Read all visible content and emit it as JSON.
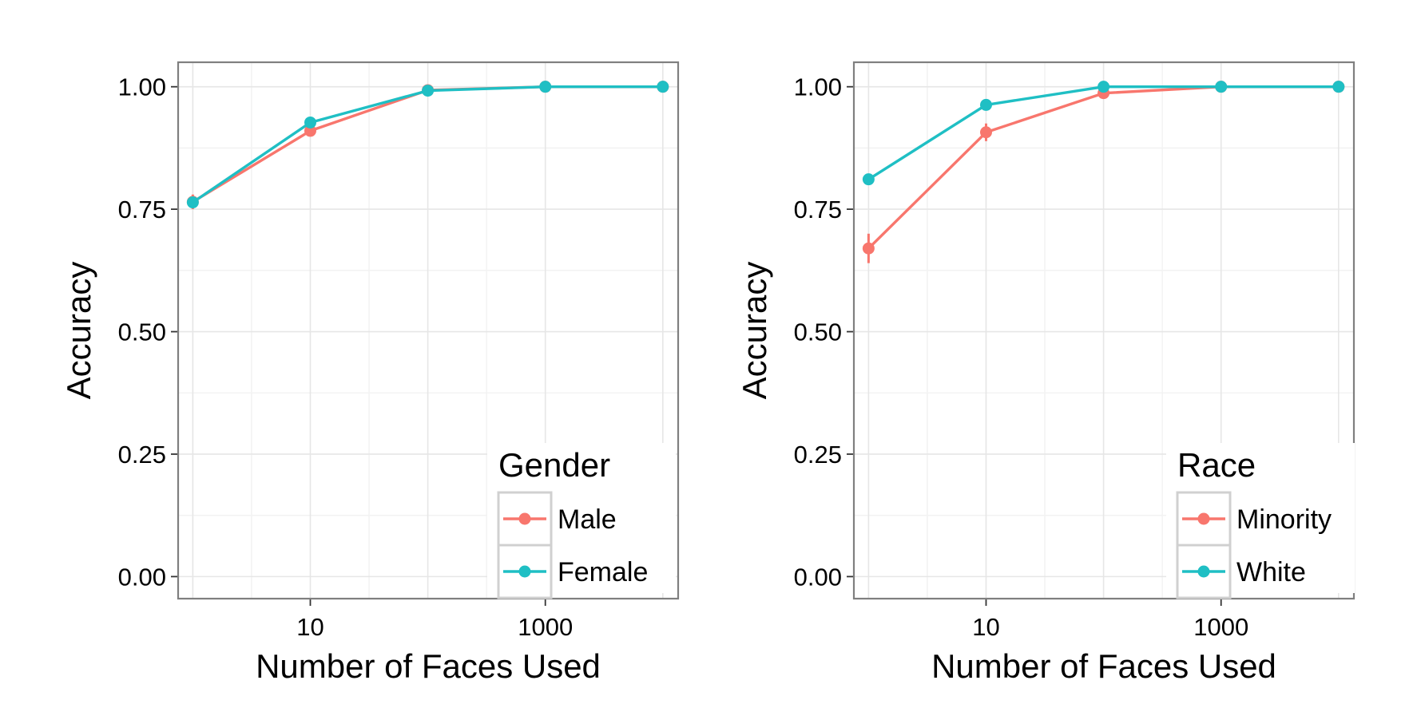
{
  "chart_data": [
    {
      "type": "line",
      "title": "",
      "xlabel": "Number of Faces Used",
      "ylabel": "Accuracy",
      "x_scale": "log10",
      "x": [
        1,
        10,
        100,
        1000,
        10000
      ],
      "xticks": [
        10,
        1000
      ],
      "xtick_labels": [
        "10",
        "1000"
      ],
      "xlim": [
        0.75,
        13500
      ],
      "ylim": [
        -0.045,
        1.05
      ],
      "yticks": [
        0.0,
        0.25,
        0.5,
        0.75,
        1.0
      ],
      "ytick_labels": [
        "0.00",
        "0.25",
        "0.50",
        "0.75",
        "1.00"
      ],
      "grid": true,
      "legend": {
        "title": "Gender",
        "placement": "bottom-right"
      },
      "series": [
        {
          "name": "Male",
          "color": "#F8766D",
          "values": [
            0.765,
            0.91,
            0.993,
            1.0,
            1.0
          ],
          "error": [
            0.015,
            0.0,
            0.0,
            0.0,
            0.0
          ]
        },
        {
          "name": "Female",
          "color": "#1FBFC4",
          "values": [
            0.764,
            0.927,
            0.992,
            1.0,
            1.0
          ],
          "error": [
            0.012,
            0.0,
            0.0,
            0.0,
            0.0
          ]
        }
      ]
    },
    {
      "type": "line",
      "title": "",
      "xlabel": "Number of Faces Used",
      "ylabel": "Accuracy",
      "x_scale": "log10",
      "x": [
        1,
        10,
        100,
        1000,
        10000
      ],
      "xticks": [
        10,
        1000
      ],
      "xtick_labels": [
        "10",
        "1000"
      ],
      "xlim": [
        0.75,
        13500
      ],
      "ylim": [
        -0.045,
        1.05
      ],
      "yticks": [
        0.0,
        0.25,
        0.5,
        0.75,
        1.0
      ],
      "ytick_labels": [
        "0.00",
        "0.25",
        "0.50",
        "0.75",
        "1.00"
      ],
      "grid": true,
      "legend": {
        "title": "Race",
        "placement": "bottom-right"
      },
      "series": [
        {
          "name": "Minority",
          "color": "#F8766D",
          "values": [
            0.67,
            0.907,
            0.987,
            1.0,
            1.0
          ],
          "error": [
            0.03,
            0.018,
            0.0,
            0.0,
            0.0
          ]
        },
        {
          "name": "White",
          "color": "#1FBFC4",
          "values": [
            0.811,
            0.963,
            1.0,
            1.0,
            1.0
          ],
          "error": [
            0.0,
            0.0,
            0.0,
            0.0,
            0.0
          ]
        }
      ]
    }
  ]
}
